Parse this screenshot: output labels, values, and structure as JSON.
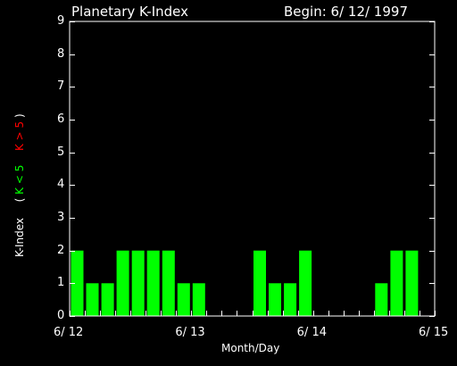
{
  "chart_data": {
    "type": "bar",
    "title": "Planetary K-Index",
    "subtitle": "Begin: 6/ 12/ 1997",
    "xlabel": "Month/Day",
    "ylabel_parts": {
      "base": "K-Index",
      "open": "(",
      "green_part": "K < 5",
      "red_part": "K > 5",
      "close": ")"
    },
    "ylim": [
      0,
      9
    ],
    "yticks": [
      0,
      1,
      2,
      3,
      4,
      5,
      6,
      7,
      8,
      9
    ],
    "xlim_days": [
      0,
      3
    ],
    "xtick_labels": [
      "6/ 12",
      "6/ 13",
      "6/ 14",
      "6/ 15"
    ],
    "bar_interval_hours": 3,
    "values": [
      2,
      1,
      1,
      2,
      2,
      2,
      2,
      1,
      1,
      0,
      0,
      0,
      2,
      1,
      1,
      2,
      0,
      0,
      0,
      0,
      1,
      2,
      2,
      0
    ],
    "colors": {
      "low": "#00ff00",
      "high": "#ff0000",
      "axis": "#ffffff"
    },
    "grid": false
  }
}
